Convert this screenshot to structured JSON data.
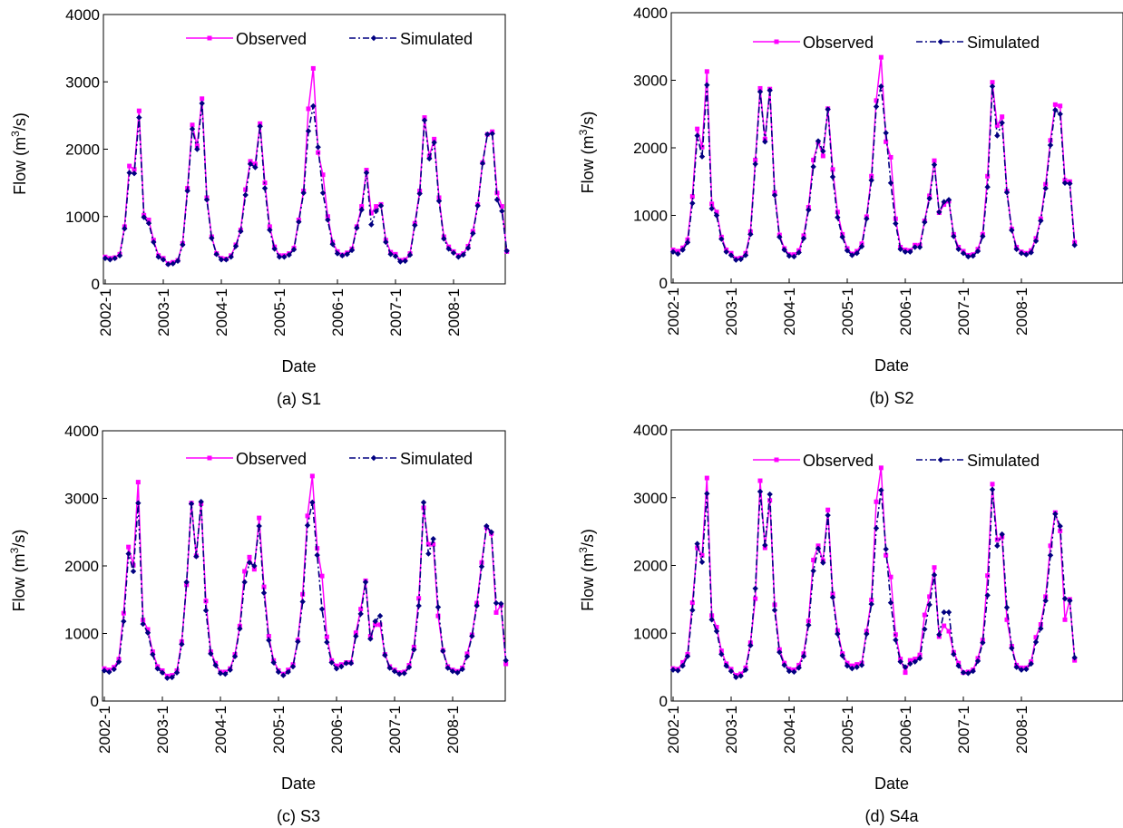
{
  "chart_data": [
    {
      "type": "line",
      "title": "(a) S1",
      "xlabel": "Date",
      "ylabel": "Flow (m³/s)",
      "ylabel_parts": [
        "Flow (m",
        "3",
        "/s)"
      ],
      "ylim": [
        0,
        4000
      ],
      "yticks": [
        0,
        1000,
        2000,
        3000,
        4000
      ],
      "x_start": "2002-1",
      "xticks": [
        "2002-1",
        "2003-1",
        "2004-1",
        "2005-1",
        "2006-1",
        "2007-1",
        "2008-1"
      ],
      "legend_position": "top",
      "series": [
        {
          "name": "Observed",
          "values": [
            400,
            380,
            390,
            440,
            850,
            1750,
            1700,
            2570,
            1020,
            950,
            650,
            420,
            380,
            300,
            320,
            350,
            600,
            1420,
            2360,
            2050,
            2750,
            1280,
            700,
            450,
            380,
            370,
            420,
            580,
            800,
            1400,
            1820,
            1780,
            2380,
            1500,
            850,
            550,
            420,
            420,
            450,
            530,
            950,
            1380,
            2600,
            3200,
            1950,
            1620,
            1000,
            620,
            480,
            430,
            460,
            520,
            850,
            1150,
            1690,
            1050,
            1150,
            1180,
            650,
            470,
            440,
            350,
            360,
            450,
            900,
            1380,
            2470,
            1900,
            2150,
            1280,
            700,
            550,
            480,
            420,
            450,
            560,
            780,
            1180,
            1800,
            2220,
            2260,
            1350,
            1150,
            480
          ]
        },
        {
          "name": "Simulated",
          "values": [
            380,
            360,
            380,
            420,
            820,
            1650,
            1640,
            2470,
            990,
            900,
            620,
            400,
            360,
            290,
            300,
            340,
            580,
            1380,
            2300,
            2000,
            2680,
            1250,
            680,
            440,
            360,
            360,
            400,
            560,
            780,
            1320,
            1780,
            1730,
            2340,
            1420,
            800,
            520,
            400,
            400,
            430,
            510,
            920,
            1350,
            2270,
            2640,
            2030,
            1350,
            950,
            590,
            450,
            420,
            440,
            500,
            830,
            1100,
            1650,
            880,
            1080,
            1160,
            620,
            440,
            410,
            330,
            340,
            430,
            870,
            1340,
            2430,
            1860,
            2100,
            1230,
            670,
            520,
            460,
            400,
            430,
            530,
            750,
            1160,
            1790,
            2220,
            2230,
            1250,
            1080,
            490
          ]
        }
      ]
    },
    {
      "type": "line",
      "title": "(b) S2",
      "xlabel": "Date",
      "ylabel": "Flow (m³/s)",
      "ylabel_parts": [
        "Flow (m",
        "3",
        "/s)"
      ],
      "ylim": [
        0,
        4000
      ],
      "yticks": [
        0,
        1000,
        2000,
        3000,
        4000
      ],
      "x_start": "2002-1",
      "xticks": [
        "2002-1",
        "2003-1",
        "2004-1",
        "2005-1",
        "2006-1",
        "2007-1",
        "2008-1"
      ],
      "legend_position": "top",
      "series": [
        {
          "name": "Observed",
          "values": [
            490,
            470,
            520,
            640,
            1280,
            2280,
            2010,
            3130,
            1170,
            1050,
            680,
            490,
            440,
            360,
            370,
            440,
            760,
            1820,
            2880,
            2130,
            2870,
            1340,
            710,
            510,
            420,
            420,
            480,
            700,
            1120,
            1820,
            2080,
            1880,
            2580,
            1680,
            1050,
            720,
            510,
            430,
            470,
            580,
            980,
            1580,
            2700,
            3340,
            2090,
            1860,
            950,
            530,
            490,
            480,
            560,
            560,
            920,
            1290,
            1810,
            1040,
            1160,
            1210,
            720,
            530,
            470,
            410,
            420,
            500,
            720,
            1580,
            2970,
            2330,
            2460,
            1360,
            800,
            530,
            460,
            440,
            480,
            660,
            950,
            1460,
            2110,
            2640,
            2620,
            1520,
            1500,
            600
          ]
        },
        {
          "name": "Simulated",
          "values": [
            460,
            430,
            490,
            600,
            1180,
            2180,
            1870,
            2930,
            1100,
            1000,
            650,
            460,
            410,
            340,
            350,
            410,
            720,
            1760,
            2830,
            2090,
            2850,
            1300,
            680,
            490,
            400,
            390,
            450,
            660,
            1080,
            1720,
            2100,
            1950,
            2570,
            1570,
            970,
            680,
            480,
            410,
            440,
            540,
            950,
            1520,
            2610,
            2910,
            2220,
            1480,
            880,
            500,
            460,
            460,
            530,
            530,
            900,
            1250,
            1750,
            1050,
            1200,
            1230,
            690,
            500,
            440,
            390,
            400,
            470,
            690,
            1420,
            2910,
            2180,
            2370,
            1340,
            780,
            500,
            440,
            420,
            450,
            620,
            920,
            1400,
            2040,
            2560,
            2500,
            1480,
            1470,
            560
          ]
        }
      ]
    },
    {
      "type": "line",
      "title": "(c) S3",
      "xlabel": "Date",
      "ylabel": "Flow (m³/s)",
      "ylabel_parts": [
        "Flow (m",
        "3",
        "/s)"
      ],
      "ylim": [
        0,
        4000
      ],
      "yticks": [
        0,
        1000,
        2000,
        3000,
        4000
      ],
      "x_start": "2002-1",
      "xticks": [
        "2002-1",
        "2003-1",
        "2004-1",
        "2005-1",
        "2006-1",
        "2007-1",
        "2008-1"
      ],
      "legend_position": "top",
      "series": [
        {
          "name": "Observed",
          "values": [
            480,
            460,
            500,
            620,
            1300,
            2280,
            2010,
            3240,
            1200,
            1060,
            730,
            510,
            450,
            370,
            380,
            450,
            880,
            1720,
            2930,
            2150,
            2920,
            1480,
            730,
            560,
            430,
            430,
            480,
            690,
            1110,
            1920,
            2130,
            1950,
            2710,
            1690,
            960,
            600,
            450,
            400,
            460,
            540,
            900,
            1580,
            2740,
            3330,
            2260,
            1850,
            950,
            600,
            520,
            540,
            570,
            570,
            1010,
            1360,
            1780,
            960,
            1130,
            1130,
            690,
            510,
            460,
            420,
            430,
            530,
            800,
            1520,
            2860,
            2320,
            2320,
            1260,
            750,
            510,
            460,
            440,
            490,
            700,
            980,
            1450,
            2050,
            2570,
            2480,
            1310,
            1420,
            550
          ]
        },
        {
          "name": "Simulated",
          "values": [
            450,
            430,
            470,
            580,
            1180,
            2180,
            1920,
            2930,
            1140,
            1010,
            690,
            480,
            420,
            340,
            350,
            420,
            840,
            1760,
            2920,
            2140,
            2950,
            1340,
            700,
            530,
            410,
            400,
            460,
            660,
            1070,
            1760,
            2050,
            2000,
            2590,
            1600,
            900,
            570,
            430,
            380,
            430,
            510,
            880,
            1470,
            2600,
            2940,
            2160,
            1360,
            870,
            570,
            480,
            510,
            560,
            560,
            960,
            1290,
            1760,
            920,
            1180,
            1260,
            680,
            490,
            440,
            400,
            410,
            500,
            760,
            1410,
            2940,
            2180,
            2400,
            1390,
            740,
            490,
            440,
            420,
            470,
            660,
            960,
            1410,
            1990,
            2590,
            2500,
            1450,
            1440,
            600
          ]
        }
      ]
    },
    {
      "type": "line",
      "title": "(d) S4a",
      "xlabel": "Date",
      "ylabel": "Flow (m³/s)",
      "ylabel_parts": [
        "Flow (m",
        "3",
        "/s)"
      ],
      "ylim": [
        0,
        4000
      ],
      "yticks": [
        0,
        1000,
        2000,
        3000,
        4000
      ],
      "x_start": "2002-1",
      "xticks": [
        "2002-1",
        "2003-1",
        "2004-1",
        "2005-1",
        "2006-1",
        "2007-1",
        "2008-1"
      ],
      "legend_position": "top",
      "series": [
        {
          "name": "Observed",
          "values": [
            480,
            470,
            570,
            690,
            1450,
            2260,
            2150,
            3290,
            1260,
            1090,
            740,
            550,
            470,
            380,
            400,
            490,
            860,
            1510,
            3250,
            2260,
            2960,
            1420,
            760,
            560,
            470,
            460,
            530,
            700,
            1180,
            2080,
            2290,
            2070,
            2820,
            1580,
            1040,
            700,
            560,
            520,
            540,
            560,
            1030,
            1490,
            2940,
            3440,
            2150,
            1830,
            980,
            620,
            420,
            600,
            620,
            680,
            1270,
            1540,
            1970,
            950,
            1110,
            1030,
            720,
            560,
            420,
            430,
            460,
            630,
            900,
            1850,
            3200,
            2380,
            2420,
            1200,
            810,
            530,
            490,
            490,
            580,
            940,
            1130,
            1540,
            2290,
            2780,
            2510,
            1200,
            1500,
            600
          ]
        },
        {
          "name": "Simulated",
          "values": [
            460,
            450,
            520,
            660,
            1340,
            2320,
            2050,
            3060,
            1200,
            1030,
            690,
            520,
            440,
            350,
            370,
            460,
            820,
            1660,
            3090,
            2300,
            3050,
            1340,
            720,
            530,
            440,
            430,
            490,
            660,
            1120,
            1920,
            2250,
            2040,
            2740,
            1530,
            990,
            670,
            520,
            480,
            500,
            530,
            990,
            1430,
            2550,
            3110,
            2240,
            1450,
            900,
            580,
            500,
            550,
            580,
            630,
            1060,
            1420,
            1860,
            980,
            1310,
            1310,
            690,
            520,
            420,
            410,
            440,
            590,
            860,
            1560,
            3120,
            2290,
            2460,
            1380,
            780,
            500,
            460,
            470,
            550,
            870,
            1070,
            1480,
            2150,
            2760,
            2580,
            1510,
            1480,
            640
          ]
        }
      ]
    }
  ],
  "colors": {
    "observed": "#ff00ff",
    "simulated": "#000080",
    "axis": "#000000"
  }
}
